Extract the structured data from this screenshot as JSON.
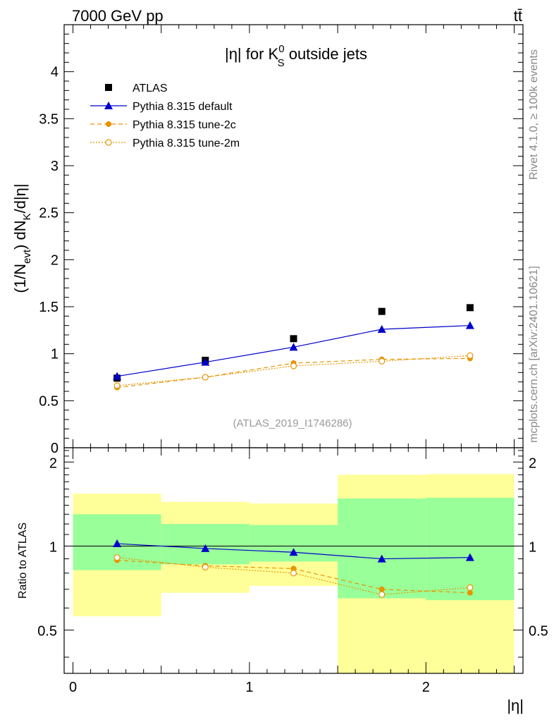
{
  "header": {
    "energy": "7000 GeV pp",
    "process": "tt̄"
  },
  "side_labels": {
    "rivet": "Rivet 4.1.0, ≥ 100k events",
    "mcplots": "mcplots.cern.ch [arXiv:2401.10621]"
  },
  "chart_data": [
    {
      "type": "scatter",
      "title": "|η| for K⁰S outside jets",
      "title_parts": {
        "pre": "|η| for K",
        "sup": "0",
        "sub": "S",
        "post": " outside jets"
      },
      "ylabel": "(1/Nevt) dNK/d|η|",
      "ylabel_parts": {
        "a": "(1/N",
        "sub1": "evt",
        "b": ") dN",
        "sub2": "K",
        "c": "/d|η|"
      },
      "watermark": "(ATLAS_2019_I1746286)",
      "xlim": [
        -0.05,
        2.55
      ],
      "ylim": [
        0,
        4.5
      ],
      "yticks": [
        0,
        0.5,
        1,
        1.5,
        2,
        2.5,
        3,
        3.5,
        4
      ],
      "yticklabels": [
        "0",
        "0.5",
        "1",
        "1.5",
        "2",
        "2.5",
        "3",
        "3.5",
        "4"
      ],
      "x": [
        0.25,
        0.75,
        1.25,
        1.75,
        2.25
      ],
      "series": [
        {
          "name": "ATLAS",
          "color": "#000000",
          "marker": "square",
          "line": "none",
          "values": [
            0.74,
            0.93,
            1.16,
            1.45,
            1.49
          ]
        },
        {
          "name": "Pythia 8.315 default",
          "color": "#0000cc",
          "marker": "triangle",
          "line": "solid",
          "values": [
            0.76,
            0.91,
            1.07,
            1.26,
            1.3
          ]
        },
        {
          "name": "Pythia 8.315 tune-2c",
          "color": "#e69500",
          "marker": "circle",
          "line": "dashed",
          "values": [
            0.64,
            0.75,
            0.9,
            0.94,
            0.95
          ]
        },
        {
          "name": "Pythia 8.315 tune-2m",
          "color": "#e69500",
          "marker": "open-circle",
          "line": "dotted",
          "values": [
            0.66,
            0.75,
            0.87,
            0.92,
            0.98
          ]
        }
      ]
    },
    {
      "type": "scatter",
      "ylabel": "Ratio to ATLAS",
      "xlabel": "|η|",
      "xlim": [
        -0.05,
        2.55
      ],
      "ylim": [
        0.35,
        2.25
      ],
      "xticks": [
        0,
        1,
        2
      ],
      "xticklabels": [
        "0",
        "1",
        "2"
      ],
      "yticks": [
        0.5,
        1,
        2
      ],
      "yticklabels": [
        "0.5",
        "1",
        "2"
      ],
      "bins": [
        [
          0,
          0.5
        ],
        [
          0.5,
          1.0
        ],
        [
          1.0,
          1.5
        ],
        [
          1.5,
          2.0
        ],
        [
          2.0,
          2.5
        ]
      ],
      "band_outer": [
        [
          0.56,
          1.54
        ],
        [
          0.68,
          1.44
        ],
        [
          0.72,
          1.42
        ],
        [
          0.35,
          1.8
        ],
        [
          0.35,
          1.81
        ]
      ],
      "band_inner": [
        [
          0.82,
          1.3
        ],
        [
          0.86,
          1.2
        ],
        [
          0.88,
          1.19
        ],
        [
          0.65,
          1.48
        ],
        [
          0.64,
          1.49
        ]
      ],
      "band_colors": {
        "outer": "#ffff99",
        "inner": "#99ff99"
      },
      "x": [
        0.25,
        0.75,
        1.25,
        1.75,
        2.25
      ],
      "series": [
        {
          "name": "Pythia 8.315 default",
          "color": "#0000cc",
          "marker": "triangle",
          "line": "solid",
          "values": [
            1.02,
            0.98,
            0.95,
            0.9,
            0.91
          ]
        },
        {
          "name": "Pythia 8.315 tune-2c",
          "color": "#e69500",
          "marker": "circle",
          "line": "dashed",
          "values": [
            0.89,
            0.85,
            0.83,
            0.7,
            0.68
          ]
        },
        {
          "name": "Pythia 8.315 tune-2m",
          "color": "#e69500",
          "marker": "open-circle",
          "line": "dotted",
          "values": [
            0.91,
            0.84,
            0.8,
            0.67,
            0.71
          ]
        }
      ]
    }
  ]
}
